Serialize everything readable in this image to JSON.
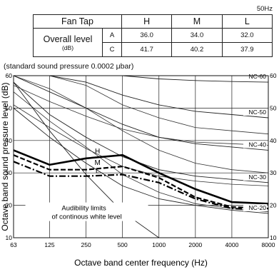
{
  "frequency_tag": "50Hz",
  "table": {
    "fan_tap_label": "Fan Tap",
    "overall_level_label": "Overall level",
    "unit_label": "(dB)",
    "columns": [
      "H",
      "M",
      "L"
    ],
    "rows": [
      {
        "label": "A",
        "values": [
          "36.0",
          "34.0",
          "32.0"
        ]
      },
      {
        "label": "C",
        "values": [
          "41.7",
          "40.2",
          "37.9"
        ]
      }
    ]
  },
  "standard_note": "(standard sound pressure 0.0002 μbar)",
  "chart_data": {
    "type": "line",
    "xlabel": "Octave band center frequency (Hz)",
    "ylabel": "Octave band  sound pressure level (dB)",
    "x_scale": "log2",
    "x_ticks": [
      63,
      125,
      250,
      500,
      1000,
      2000,
      4000,
      8000
    ],
    "ylim": [
      10,
      60
    ],
    "y_ticks": [
      10,
      20,
      30,
      40,
      50,
      60
    ],
    "grid": true,
    "series": [
      {
        "name": "H",
        "style": "solid-bold",
        "x": [
          63,
          125,
          250,
          500,
          1000,
          2000,
          4000,
          8000
        ],
        "values": [
          37,
          32.5,
          34.5,
          35.5,
          30,
          25,
          21,
          20.5
        ]
      },
      {
        "name": "M",
        "style": "dashed-bold",
        "x": [
          63,
          125,
          250,
          500,
          1000,
          2000,
          4000,
          8000
        ],
        "values": [
          35.5,
          31,
          31,
          32,
          28.5,
          22.5,
          19.5,
          19
        ]
      },
      {
        "name": "L",
        "style": "dash-dot-bold",
        "x": [
          63,
          125,
          250,
          500,
          1000,
          2000,
          4000,
          8000
        ],
        "values": [
          33.5,
          29,
          29,
          29.5,
          27,
          22,
          19,
          18.5
        ]
      }
    ],
    "nc_curves": [
      {
        "name": "NC-60",
        "values": [
          [
            63,
            60
          ],
          [
            125,
            60
          ],
          [
            250,
            60
          ],
          [
            500,
            60
          ],
          [
            1000,
            59
          ],
          [
            2000,
            58.5
          ],
          [
            4000,
            58.2
          ],
          [
            8000,
            58
          ]
        ]
      },
      {
        "name": "NC-50",
        "values": [
          [
            63,
            60
          ],
          [
            125,
            60
          ],
          [
            250,
            58
          ],
          [
            500,
            54
          ],
          [
            1000,
            51
          ],
          [
            2000,
            49
          ],
          [
            4000,
            48
          ],
          [
            8000,
            47
          ]
        ]
      },
      {
        "name": "NC-40",
        "values": [
          [
            63,
            60
          ],
          [
            125,
            55
          ],
          [
            250,
            50
          ],
          [
            500,
            45
          ],
          [
            1000,
            41
          ],
          [
            2000,
            39
          ],
          [
            4000,
            38
          ],
          [
            8000,
            37
          ]
        ]
      },
      {
        "name": "NC-30",
        "values": [
          [
            63,
            58
          ],
          [
            125,
            48
          ],
          [
            250,
            41
          ],
          [
            500,
            35
          ],
          [
            1000,
            31
          ],
          [
            2000,
            29
          ],
          [
            4000,
            28
          ],
          [
            8000,
            27
          ]
        ]
      },
      {
        "name": "NC-20",
        "values": [
          [
            63,
            50
          ],
          [
            125,
            41
          ],
          [
            250,
            33
          ],
          [
            500,
            26
          ],
          [
            1000,
            22
          ],
          [
            2000,
            20
          ],
          [
            4000,
            18.5
          ],
          [
            8000,
            17.5
          ]
        ]
      }
    ],
    "unlabeled_curves": [
      {
        "values": [
          [
            63,
            57
          ],
          [
            125,
            52
          ],
          [
            250,
            47.5
          ],
          [
            500,
            43.5
          ],
          [
            1000,
            41
          ],
          [
            2000,
            39.5
          ],
          [
            4000,
            39
          ],
          [
            8000,
            38.5
          ]
        ]
      },
      {
        "values": [
          [
            63,
            51
          ],
          [
            125,
            44
          ],
          [
            250,
            37.5
          ],
          [
            500,
            32
          ],
          [
            1000,
            29
          ],
          [
            2000,
            27.5
          ],
          [
            4000,
            26.5
          ],
          [
            8000,
            26
          ]
        ]
      },
      {
        "values": [
          [
            63,
            55
          ],
          [
            125,
            46
          ],
          [
            250,
            38
          ],
          [
            500,
            29.5
          ],
          [
            1000,
            24
          ],
          [
            2000,
            20.5
          ],
          [
            4000,
            19
          ],
          [
            8000,
            18
          ]
        ]
      },
      {
        "values": [
          [
            63,
            60
          ],
          [
            125,
            56
          ],
          [
            250,
            50
          ],
          [
            500,
            43
          ],
          [
            1000,
            37
          ],
          [
            2000,
            33
          ],
          [
            4000,
            31
          ],
          [
            8000,
            30
          ]
        ]
      },
      {
        "values": [
          [
            63,
            60
          ],
          [
            125,
            60
          ],
          [
            250,
            57
          ],
          [
            500,
            51
          ],
          [
            1000,
            47
          ],
          [
            2000,
            44
          ],
          [
            4000,
            43
          ],
          [
            8000,
            42
          ]
        ]
      }
    ],
    "audibility_limit": {
      "label_line1": "Audibility limits",
      "label_line2": "of continous white level",
      "values": [
        [
          63,
          58
        ],
        [
          125,
          43
        ],
        [
          250,
          29.5
        ],
        [
          500,
          18
        ],
        [
          1000,
          10
        ]
      ]
    }
  }
}
